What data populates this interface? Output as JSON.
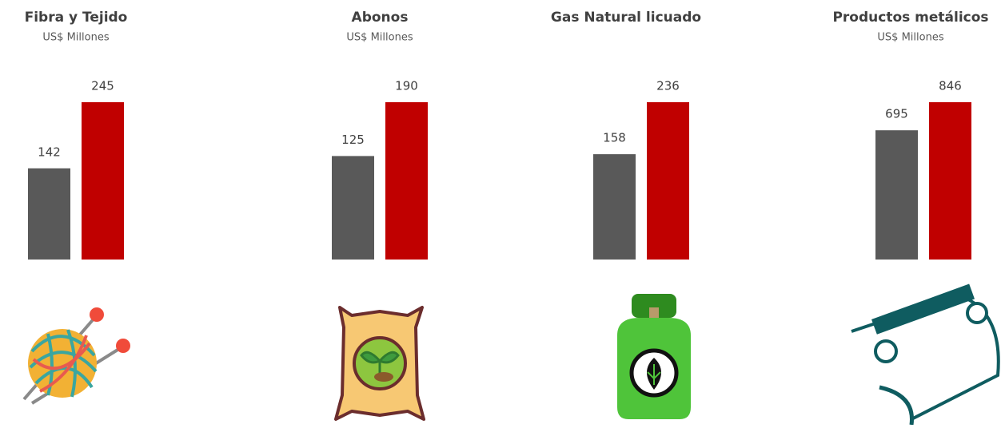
{
  "chart_data": [
    {
      "type": "bar",
      "title": "Fibra y Tejido",
      "subtitle": "US$ Millones",
      "values": [
        142,
        245
      ],
      "colors": [
        "#595959",
        "#c00000"
      ]
    },
    {
      "type": "bar",
      "title": "Abonos",
      "subtitle": "US$ Millones",
      "values": [
        125,
        190
      ],
      "colors": [
        "#595959",
        "#c00000"
      ]
    },
    {
      "type": "bar",
      "title": "Gas Natural licuado",
      "values": [
        158,
        236
      ],
      "colors": [
        "#595959",
        "#c00000"
      ]
    },
    {
      "type": "bar",
      "title": "Productos metálicos",
      "subtitle": "US$ Millones",
      "values": [
        695,
        846
      ],
      "colors": [
        "#595959",
        "#c00000"
      ]
    }
  ]
}
